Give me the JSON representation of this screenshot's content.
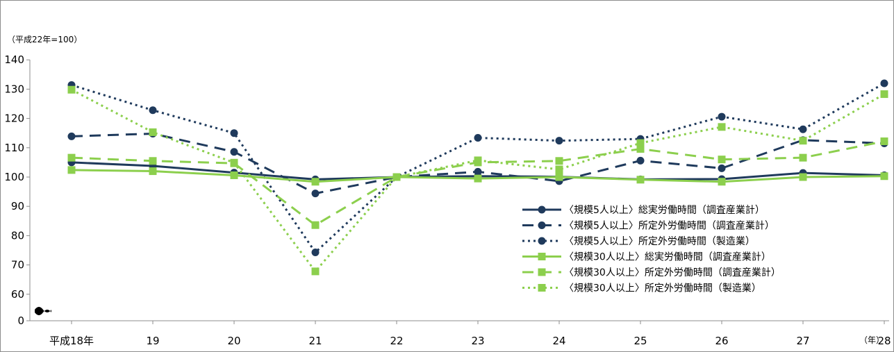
{
  "chart_data": {
    "type": "line",
    "ylabel": "（平成22年=100）",
    "x_unit_label": "（年）",
    "categories": [
      "平成18年",
      "19",
      "20",
      "21",
      "22",
      "23",
      "24",
      "25",
      "26",
      "27",
      "28"
    ],
    "y_ticks": [
      "0",
      "60",
      "70",
      "80",
      "90",
      "100",
      "110",
      "120",
      "130",
      "140"
    ],
    "y_range": [
      60,
      140
    ],
    "y_axis_break": true,
    "grid": false,
    "legend_position": "lower-right",
    "series": [
      {
        "name": "〈規模5人以上〉総実労働時間（調査産業計）",
        "color": "#1f3a5c",
        "dash": "solid",
        "marker": "circle",
        "values": [
          105.0,
          103.8,
          101.5,
          99.2,
          100.0,
          100.3,
          100.1,
          99.2,
          99.3,
          101.4,
          100.6
        ]
      },
      {
        "name": "〈規模5人以上〉所定外労働時間（調査産業計）",
        "color": "#1f3a5c",
        "dash": "dash",
        "marker": "circle",
        "values": [
          113.9,
          114.8,
          108.6,
          94.4,
          100.0,
          101.8,
          98.6,
          105.6,
          103.0,
          112.6,
          111.5
        ]
      },
      {
        "name": "〈規模5人以上〉所定外労働時間（製造業）",
        "color": "#1f3a5c",
        "dash": "dot",
        "marker": "circle",
        "values": [
          131.4,
          122.8,
          115.0,
          74.3,
          100.0,
          113.4,
          112.4,
          113.0,
          120.6,
          116.3,
          132.0
        ]
      },
      {
        "name": "〈規模30人以上〉総実労働時間（調査産業計）",
        "color": "#8ccf4d",
        "dash": "solid",
        "marker": "square",
        "values": [
          102.4,
          102.0,
          100.6,
          98.4,
          100.0,
          99.5,
          100.0,
          99.1,
          98.4,
          100.0,
          100.3
        ]
      },
      {
        "name": "〈規模30人以上〉所定外労働時間（調査産業計）",
        "color": "#8ccf4d",
        "dash": "dash",
        "marker": "square",
        "values": [
          106.6,
          105.5,
          104.7,
          83.6,
          100.0,
          105.0,
          105.5,
          109.6,
          106.0,
          106.6,
          112.2
        ]
      },
      {
        "name": "〈規模30人以上〉所定外労働時間（製造業）",
        "color": "#8ccf4d",
        "dash": "dot",
        "marker": "square",
        "values": [
          129.8,
          115.3,
          104.9,
          67.8,
          100.0,
          105.7,
          102.6,
          111.6,
          117.1,
          112.4,
          128.3
        ]
      }
    ]
  }
}
